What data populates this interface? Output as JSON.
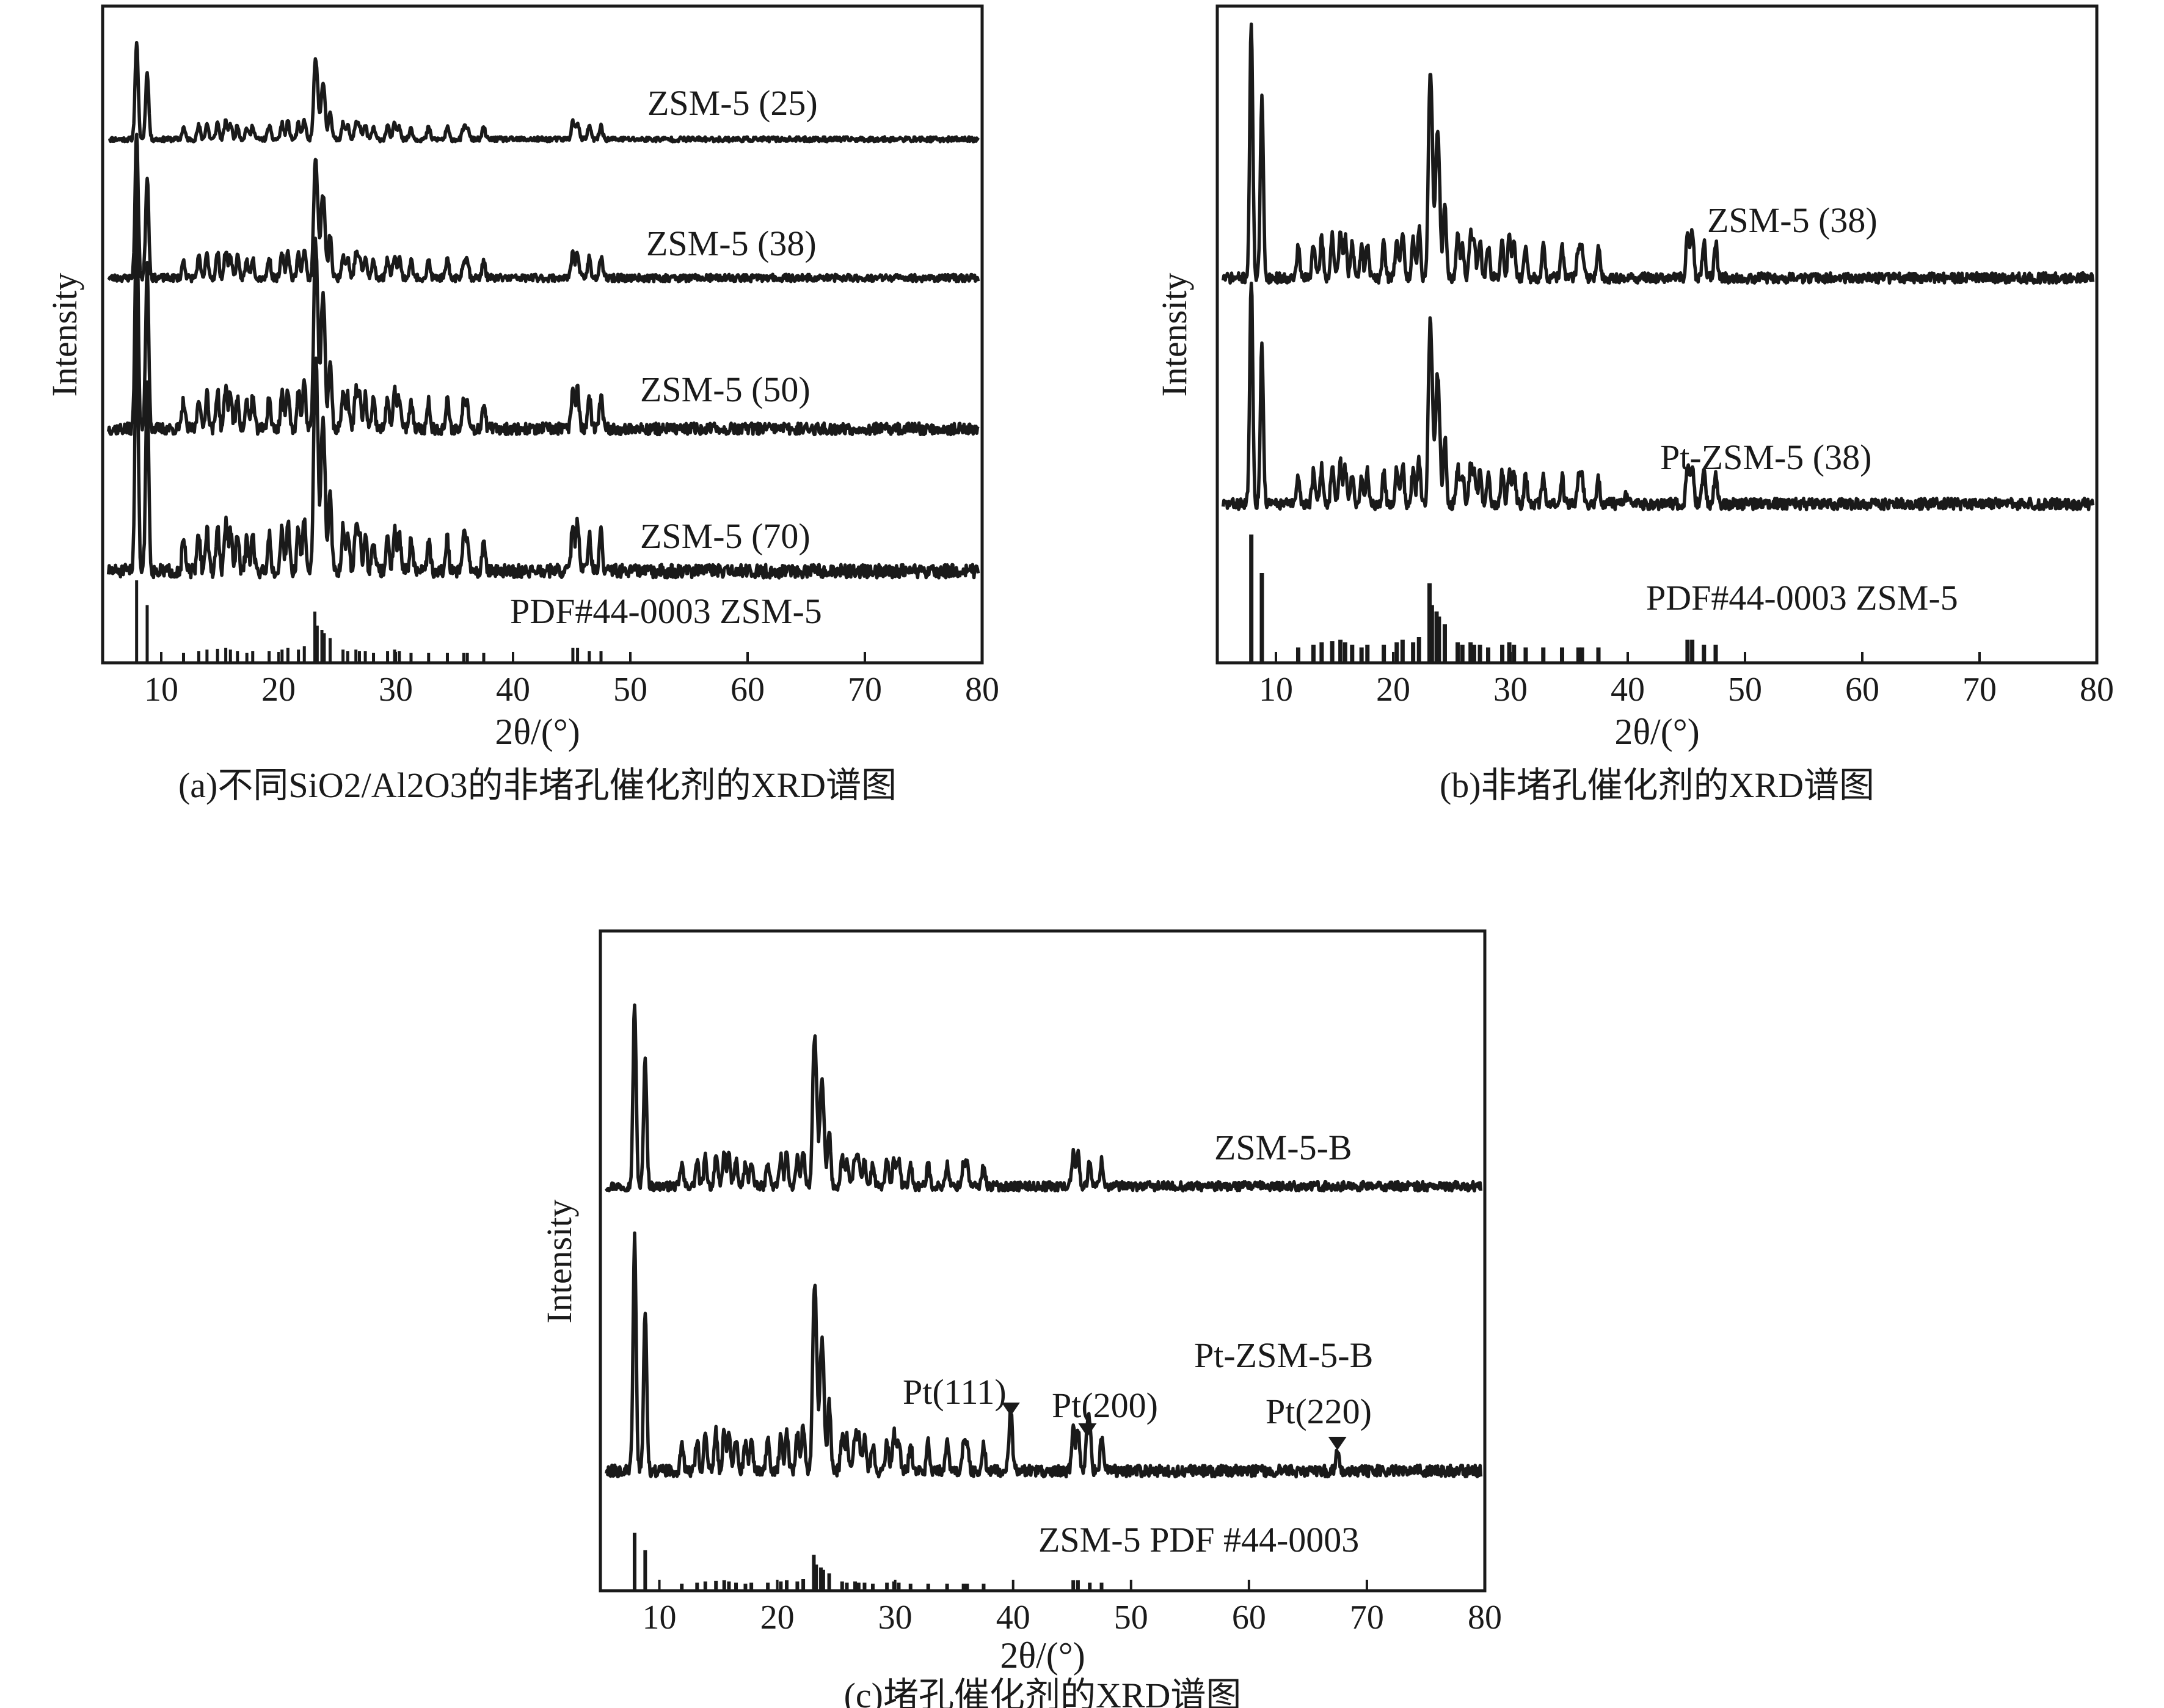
{
  "colors": {
    "ink": "#1a1a1a",
    "background": "#ffffff"
  },
  "chart_data": [
    {
      "panel": "a",
      "type": "line",
      "caption": "(a)不同SiO2/Al2O3的非堵孔催化剂的XRD谱图",
      "xlabel": "2θ/(°)",
      "ylabel": "Intensity",
      "xlim": [
        5,
        80
      ],
      "xticks": [
        "10",
        "20",
        "30",
        "40",
        "50",
        "60",
        "70",
        "80"
      ],
      "yticks": false,
      "grid": false,
      "series": [
        {
          "name": "ZSM-5 (25)",
          "kind": "pattern"
        },
        {
          "name": "ZSM-5 (38)",
          "kind": "pattern"
        },
        {
          "name": "ZSM-5 (50)",
          "kind": "pattern"
        },
        {
          "name": "ZSM-5 (70)",
          "kind": "pattern"
        },
        {
          "name": "PDF#44-0003 ZSM-5",
          "kind": "reference"
        }
      ]
    },
    {
      "panel": "b",
      "type": "line",
      "caption": "(b)非堵孔催化剂的XRD谱图",
      "xlabel": "2θ/(°)",
      "ylabel": "Intensity",
      "xlim": [
        5,
        80
      ],
      "xticks": [
        "10",
        "20",
        "30",
        "40",
        "50",
        "60",
        "70",
        "80"
      ],
      "yticks": false,
      "grid": false,
      "series": [
        {
          "name": "ZSM-5 (38)",
          "kind": "pattern"
        },
        {
          "name": "Pt-ZSM-5 (38)",
          "kind": "pattern"
        },
        {
          "name": "PDF#44-0003 ZSM-5",
          "kind": "reference"
        }
      ]
    },
    {
      "panel": "c",
      "type": "line",
      "caption": "(c)堵孔催化剂的XRD谱图",
      "xlabel": "2θ/(°)",
      "ylabel": "Intensity",
      "xlim": [
        5,
        80
      ],
      "xticks": [
        "10",
        "20",
        "30",
        "40",
        "50",
        "60",
        "70",
        "80"
      ],
      "yticks": false,
      "grid": false,
      "series": [
        {
          "name": "ZSM-5-B",
          "kind": "pattern"
        },
        {
          "name": "Pt-ZSM-5-B",
          "kind": "pattern"
        },
        {
          "name": "ZSM-5 PDF #44-0003",
          "kind": "reference"
        }
      ],
      "annotations": [
        {
          "text": "Pt(111)",
          "x": 39.8
        },
        {
          "text": "Pt(200)",
          "x": 46.3
        },
        {
          "text": "Pt(220)",
          "x": 67.5
        }
      ]
    }
  ],
  "zsm5_reflections": [
    [
      7.9,
      1.0
    ],
    [
      8.8,
      0.7
    ],
    [
      11.9,
      0.12
    ],
    [
      13.2,
      0.14
    ],
    [
      13.9,
      0.16
    ],
    [
      14.8,
      0.17
    ],
    [
      15.5,
      0.18
    ],
    [
      15.9,
      0.16
    ],
    [
      16.5,
      0.14
    ],
    [
      17.3,
      0.12
    ],
    [
      17.8,
      0.14
    ],
    [
      19.2,
      0.14
    ],
    [
      20.3,
      0.16
    ],
    [
      20.8,
      0.18
    ],
    [
      21.7,
      0.16
    ],
    [
      22.2,
      0.2
    ],
    [
      23.1,
      0.62
    ],
    [
      23.3,
      0.45
    ],
    [
      23.7,
      0.4
    ],
    [
      23.9,
      0.36
    ],
    [
      24.4,
      0.3
    ],
    [
      25.5,
      0.16
    ],
    [
      25.9,
      0.14
    ],
    [
      26.6,
      0.16
    ],
    [
      26.9,
      0.14
    ],
    [
      27.4,
      0.14
    ],
    [
      28.1,
      0.12
    ],
    [
      29.3,
      0.14
    ],
    [
      29.9,
      0.16
    ],
    [
      30.3,
      0.14
    ],
    [
      31.3,
      0.12
    ],
    [
      32.8,
      0.12
    ],
    [
      34.4,
      0.12
    ],
    [
      35.8,
      0.12
    ],
    [
      36.1,
      0.12
    ],
    [
      37.5,
      0.12
    ],
    [
      45.1,
      0.18
    ],
    [
      45.5,
      0.18
    ],
    [
      46.5,
      0.14
    ],
    [
      47.5,
      0.14
    ]
  ],
  "pt_reflections": [
    [
      39.8,
      0.26
    ],
    [
      46.3,
      0.18
    ],
    [
      67.5,
      0.08
    ]
  ]
}
